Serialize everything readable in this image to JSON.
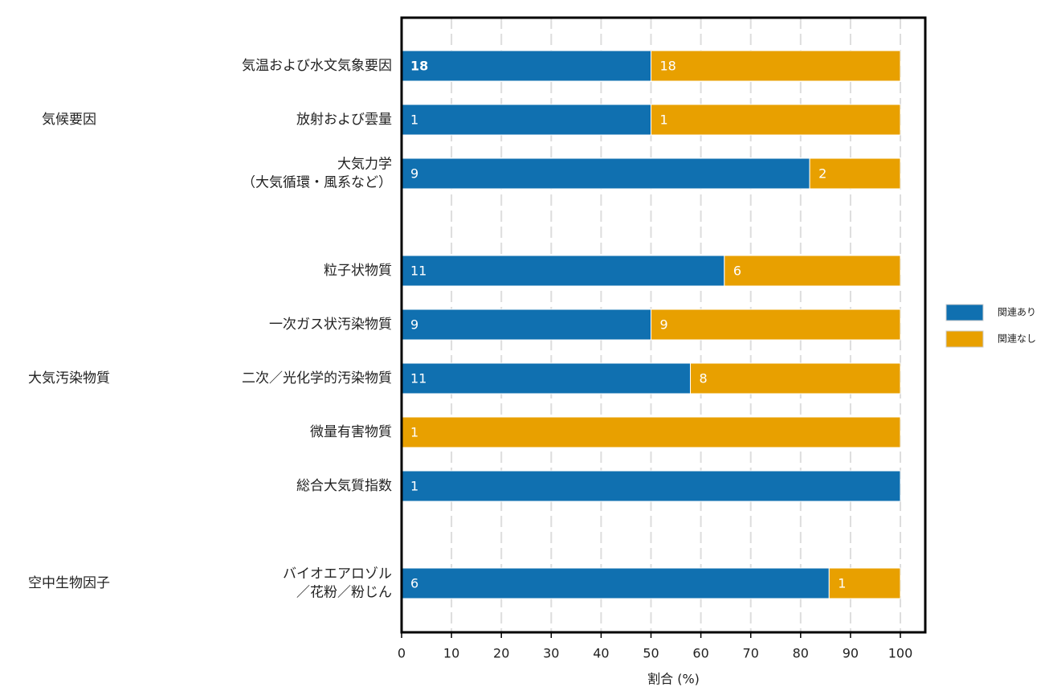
{
  "chart_data": {
    "type": "bar",
    "orientation": "horizontal",
    "stacking": "percent",
    "groups": [
      {
        "name": "気候要因",
        "categories": [
          [
            "気温および水文気象要因"
          ],
          [
            "放射および雲量"
          ],
          [
            "大気力学",
            "（大気循環・風系など）"
          ]
        ]
      },
      {
        "name": "大気汚染物質",
        "categories": [
          [
            "粒子状物質"
          ],
          [
            "一次ガス状汚染物質"
          ],
          [
            "二次／光化学的汚染物質"
          ],
          [
            "微量有害物質"
          ],
          [
            "総合大気質指数"
          ]
        ]
      },
      {
        "name": "空中生物因子",
        "categories": [
          [
            "バイオエアロゾル",
            "／花粉／粉じん"
          ]
        ]
      }
    ],
    "series": [
      {
        "name": "関連あり",
        "color": "#1070b0",
        "values": [
          18,
          1,
          9,
          11,
          9,
          11,
          null,
          1,
          6
        ]
      },
      {
        "name": "関連なし",
        "color": "#e8a000",
        "values": [
          18,
          1,
          2,
          6,
          9,
          8,
          1,
          null,
          1
        ]
      }
    ],
    "xlabel": "割合 (%)",
    "xlim": [
      0,
      100
    ],
    "xticks": [
      0,
      10,
      20,
      30,
      40,
      50,
      60,
      70,
      80,
      90,
      100
    ],
    "grid": true,
    "legend": "right"
  }
}
